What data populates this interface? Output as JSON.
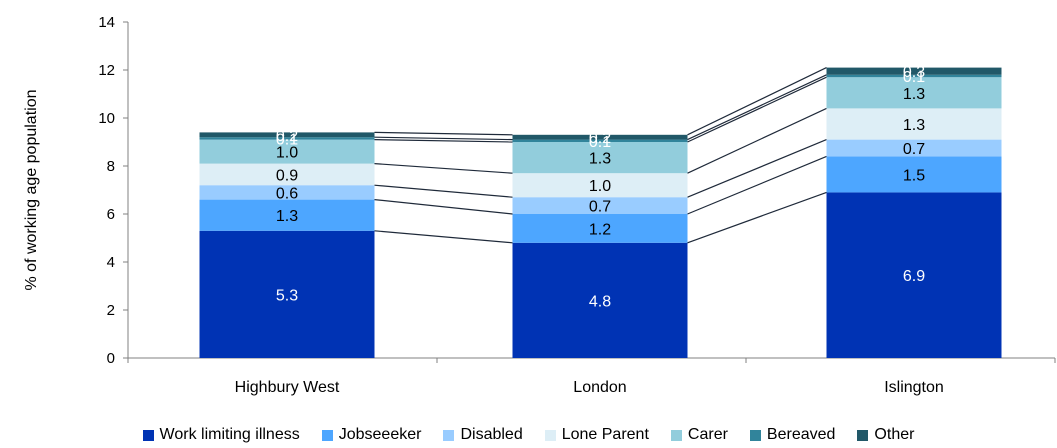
{
  "chart_data": {
    "type": "bar",
    "stacked": true,
    "categories": [
      "Highbury West",
      "London",
      "Islington"
    ],
    "ylabel": "% of working age population",
    "xlabel": "",
    "ylim": [
      0,
      14
    ],
    "yticks": [
      0,
      2,
      4,
      6,
      8,
      10,
      12,
      14
    ],
    "grid": false,
    "legend_position": "bottom",
    "connector_lines": true,
    "series": [
      {
        "name": "Work limiting illness",
        "color": "#0033B4",
        "values": [
          5.3,
          4.8,
          6.9
        ],
        "labels": [
          "5.3",
          "4.8",
          "6.9"
        ],
        "label_color": "#ffffff"
      },
      {
        "name": "Jobseeeker",
        "color": "#4DA6FF",
        "values": [
          1.3,
          1.2,
          1.5
        ],
        "labels": [
          "1.3",
          "1.2",
          "1.5"
        ],
        "label_color": "#000000"
      },
      {
        "name": "Disabled",
        "color": "#99CCFF",
        "values": [
          0.6,
          0.7,
          0.7
        ],
        "labels": [
          "0.6",
          "0.7",
          "0.7"
        ],
        "label_color": "#000000"
      },
      {
        "name": "Lone Parent",
        "color": "#DDEEF6",
        "values": [
          0.9,
          1.0,
          1.3
        ],
        "labels": [
          "0.9",
          "1.0",
          "1.3"
        ],
        "label_color": "#000000"
      },
      {
        "name": "Carer",
        "color": "#92CDDC",
        "values": [
          1.0,
          1.3,
          1.3
        ],
        "labels": [
          "1.0",
          "1.3",
          "1.3"
        ],
        "label_color": "#000000"
      },
      {
        "name": "Bereaved",
        "color": "#31849B",
        "values": [
          0.1,
          0.1,
          0.1
        ],
        "labels": [
          "0.1",
          "0.1",
          "0.1"
        ],
        "label_color": "#ffffff"
      },
      {
        "name": "Other",
        "color": "#215868",
        "values": [
          0.2,
          0.2,
          0.3
        ],
        "labels": [
          "0.2",
          "0.2",
          "0.3"
        ],
        "label_color": "#ffffff"
      }
    ]
  }
}
